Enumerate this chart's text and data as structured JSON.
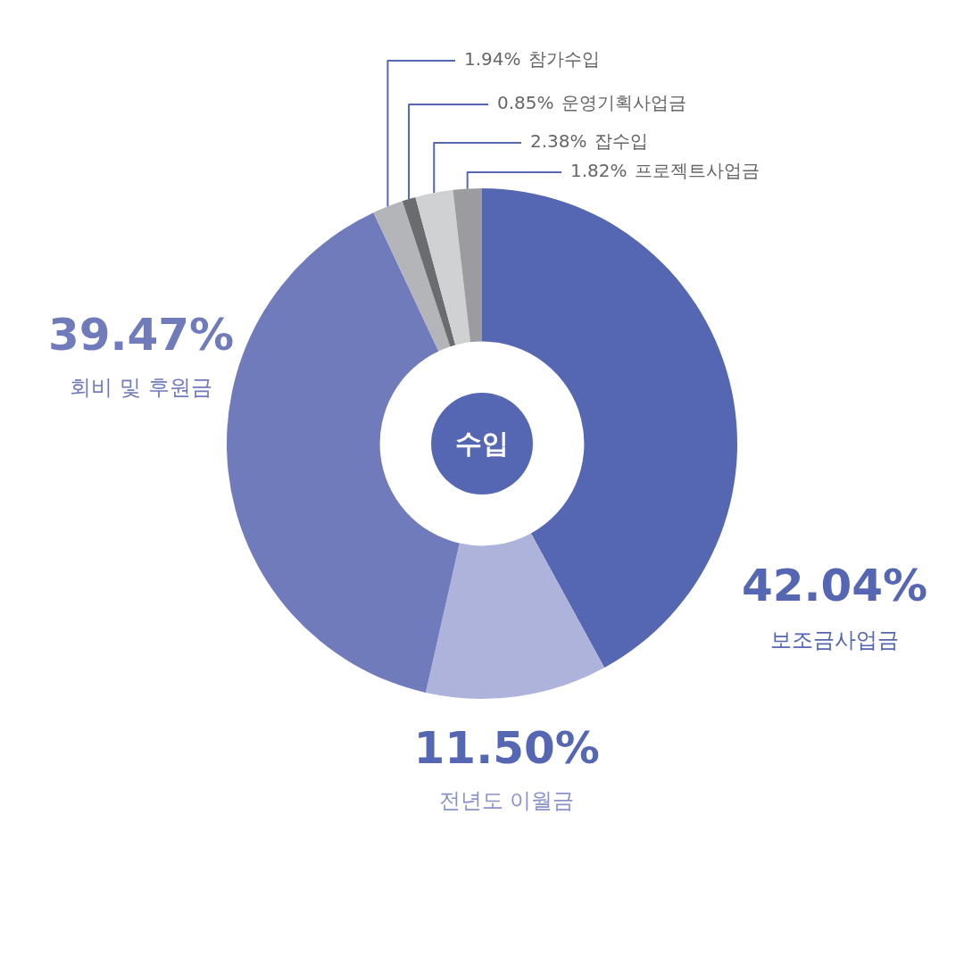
{
  "chart_data": {
    "type": "donut",
    "title": "수입",
    "categories": [
      "보조금사업금",
      "전년도 이월금",
      "회비 및 후원금",
      "참가수입",
      "운영기획사업금",
      "잡수입",
      "프로젝트사업금"
    ],
    "values": [
      42.04,
      11.5,
      39.47,
      1.94,
      0.85,
      2.38,
      1.82
    ],
    "colors": [
      "#5567b3",
      "#adb3da",
      "#6f7bbb",
      "#b4b5b9",
      "#6b6c70",
      "#d0d1d3",
      "#9b9ca0"
    ],
    "value_labels": [
      "42.04%",
      "11.50%",
      "39.47%",
      "1.94%",
      "0.85%",
      "2.38%",
      "1.82%"
    ],
    "legend": false
  }
}
